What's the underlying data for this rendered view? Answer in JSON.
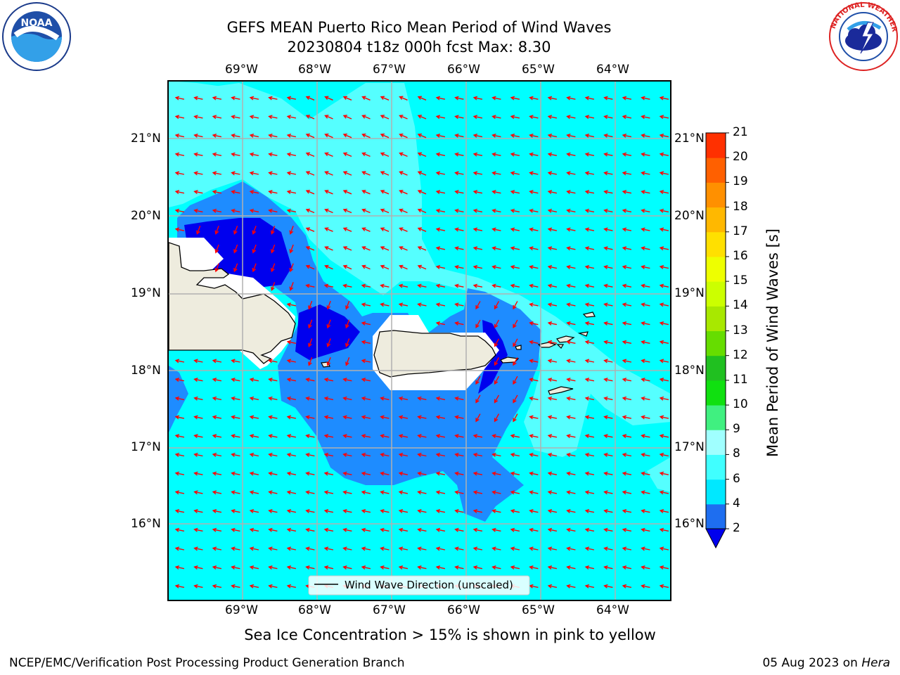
{
  "header": {
    "title_line1": "GEFS MEAN Puerto Rico Mean Period of Wind Waves",
    "title_line2": "20230804 t18z 000h fcst   Max: 8.30"
  },
  "logos": {
    "left": "NOAA",
    "left_ring_text": "NATIONAL OCEANIC AND ATMOSPHERIC ADMINISTRATION · U.S. DEPARTMENT OF COMMERCE",
    "right_ring_text": "NATIONAL WEATHER SERVICE"
  },
  "map": {
    "lon_labels": [
      "69°W",
      "68°W",
      "67°W",
      "66°W",
      "65°W",
      "64°W"
    ],
    "lat_labels": [
      "21°N",
      "20°N",
      "19°N",
      "18°N",
      "17°N",
      "16°N"
    ],
    "legend_label": "Wind Wave Direction (unscaled)",
    "colors": {
      "ocean_cyan": "#00ffff",
      "light_cyan": "#55ffff",
      "mid_blue": "#1e8cff",
      "deep_blue": "#0000ee",
      "land": "#eeecde",
      "arrow": "#ff0000",
      "grid": "#b0b0b0"
    }
  },
  "colorbar": {
    "label": "Mean Period of Wind Waves [s]",
    "ticks": [
      "2",
      "4",
      "6",
      "8",
      "9",
      "10",
      "11",
      "12",
      "13",
      "14",
      "15",
      "16",
      "17",
      "18",
      "19",
      "20",
      "21"
    ],
    "colors": [
      "#1e6ef0",
      "#00e8ff",
      "#40ffff",
      "#a0ffff",
      "#40f080",
      "#10e010",
      "#20c020",
      "#66dd00",
      "#a8e800",
      "#ccff00",
      "#eeff00",
      "#ffe000",
      "#ffb800",
      "#ff9000",
      "#ff6000",
      "#ff3000",
      "#ff0000"
    ],
    "underflow_color": "#0000ee"
  },
  "caption": "Sea Ice Concentration > 15% is shown in pink to yellow",
  "footer": {
    "left": "NCEP/EMC/Verification Post Processing Product Generation Branch",
    "date": "05 Aug 2023 on ",
    "machine": "Hera"
  }
}
